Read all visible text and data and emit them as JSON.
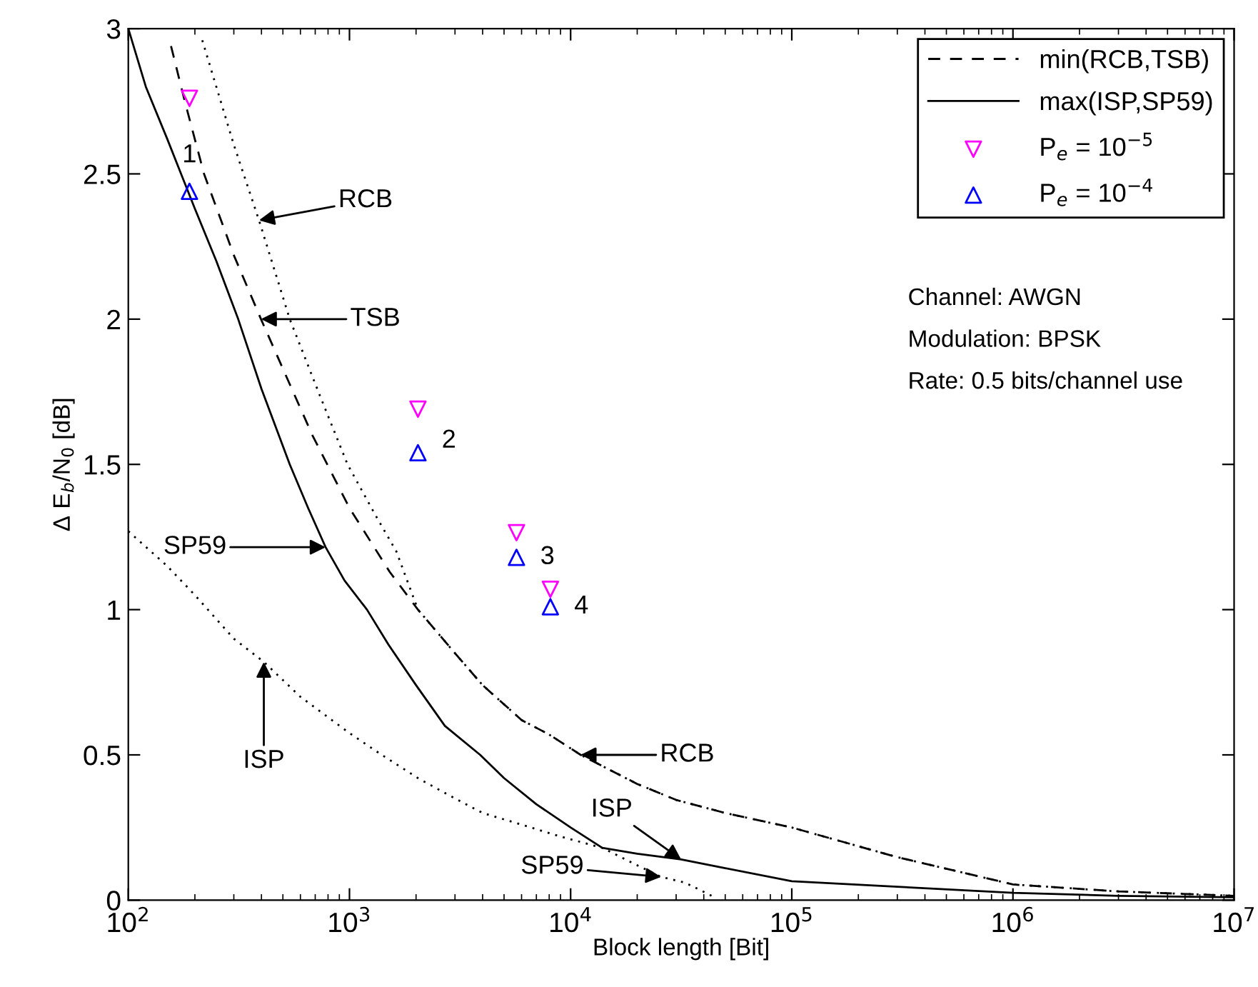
{
  "chart_data": {
    "type": "line",
    "xlabel": "Block length [Bit]",
    "ylabel": "Δ E$_{b}$/N$_{0}$ [dB]",
    "log": "x",
    "xlim": [
      100,
      10000000
    ],
    "ylim": [
      0,
      3
    ],
    "xticks": [
      {
        "value": 100,
        "label": "10$^{2}$"
      },
      {
        "value": 1000,
        "label": "10$^{3}$"
      },
      {
        "value": 10000,
        "label": "10$^{4}$"
      },
      {
        "value": 100000,
        "label": "10$^{5}$"
      },
      {
        "value": 1000000,
        "label": "10$^{6}$"
      },
      {
        "value": 10000000,
        "label": "10$^{7}$"
      }
    ],
    "yticks": [
      0,
      0.5,
      1,
      1.5,
      2,
      2.5,
      3
    ],
    "legend": "top right",
    "series": [
      {
        "name": "min(RCB,TSB)",
        "color": "#000000",
        "line_style": "dashed",
        "x": [
          156,
          180,
          220,
          300,
          398,
          520,
          680,
          1000,
          1520,
          2040,
          3000,
          4000,
          6000,
          8000,
          11100,
          20000,
          30000,
          50000,
          100000,
          300000,
          1000000,
          3000000,
          10000000
        ],
        "values": [
          2.94,
          2.75,
          2.5,
          2.22,
          2.0,
          1.8,
          1.6,
          1.35,
          1.13,
          1.0,
          0.85,
          0.74,
          0.62,
          0.57,
          0.5,
          0.4,
          0.345,
          0.3,
          0.25,
          0.148,
          0.054,
          0.03,
          0.015
        ]
      },
      {
        "name": "max(ISP,SP59)",
        "color": "#000000",
        "line_style": "solid",
        "x": [
          100,
          120,
          150,
          200,
          250,
          314,
          400,
          537,
          650,
          780,
          950,
          1200,
          1500,
          2000,
          2700,
          3900,
          5000,
          7000,
          10000,
          13900,
          20000,
          31600,
          50000,
          100000,
          300000,
          1000000,
          3000000,
          10000000
        ],
        "values": [
          3.0,
          2.8,
          2.62,
          2.38,
          2.2,
          2.0,
          1.76,
          1.5,
          1.35,
          1.215,
          1.1,
          1.0,
          0.88,
          0.74,
          0.6,
          0.5,
          0.42,
          0.33,
          0.25,
          0.18,
          0.16,
          0.14,
          0.11,
          0.065,
          0.046,
          0.025,
          0.015,
          0.01
        ]
      },
      {
        "color": "#000000",
        "line_style": "dotted",
        "x": [
          216,
          300,
          390,
          537,
          750,
          980,
          1300,
          1630,
          2040,
          3000,
          4000,
          6000,
          8000,
          11100,
          20000,
          30000,
          50000,
          100000,
          300000,
          1000000,
          3000000,
          10000000
        ],
        "values": [
          2.96,
          2.6,
          2.34,
          2.0,
          1.72,
          1.5,
          1.33,
          1.2,
          1.0,
          0.85,
          0.74,
          0.62,
          0.57,
          0.5,
          0.4,
          0.345,
          0.3,
          0.25,
          0.148,
          0.054,
          0.03,
          0.015
        ]
      },
      {
        "color": "#000000",
        "line_style": "dotted",
        "x": [
          100,
          150,
          200,
          300,
          410,
          600,
          1000,
          1400,
          2040,
          3000,
          4000,
          6000,
          8900,
          13900,
          20000,
          25700,
          33000,
          44700
        ],
        "values": [
          1.27,
          1.15,
          1.05,
          0.9,
          0.82,
          0.7,
          0.575,
          0.5,
          0.42,
          0.35,
          0.3,
          0.26,
          0.22,
          0.18,
          0.12,
          0.08,
          0.06,
          0.01
        ]
      },
      {
        "name": "P$_{e}$ = 10$^{−5}$",
        "type": "scatter",
        "marker": "triangle_down",
        "color": "#ff00ff",
        "x": [
          189,
          2040,
          5690,
          8100
        ],
        "values": [
          2.76,
          1.69,
          1.265,
          1.07
        ]
      },
      {
        "name": "P$_{e}$ = 10$^{−4}$",
        "type": "scatter",
        "marker": "triangle",
        "color": "#0000ff",
        "x": [
          189,
          2040,
          5690,
          8100
        ],
        "values": [
          2.44,
          1.54,
          1.18,
          1.01
        ]
      }
    ],
    "annotations": [
      "1",
      "2",
      "3",
      "4",
      {
        "text": "RCB",
        "x": 390,
        "y": 2.34
      },
      "TSB",
      "SP59",
      {
        "text": "ISP",
        "x": 410,
        "y": 0.82
      },
      "RCB",
      {
        "text": "ISP",
        "x": 31600,
        "y": 0.14
      },
      "SP59",
      "Channel: AWGN",
      "Modulation: BPSK",
      "Rate: 0.5 bits/channel use"
    ]
  }
}
